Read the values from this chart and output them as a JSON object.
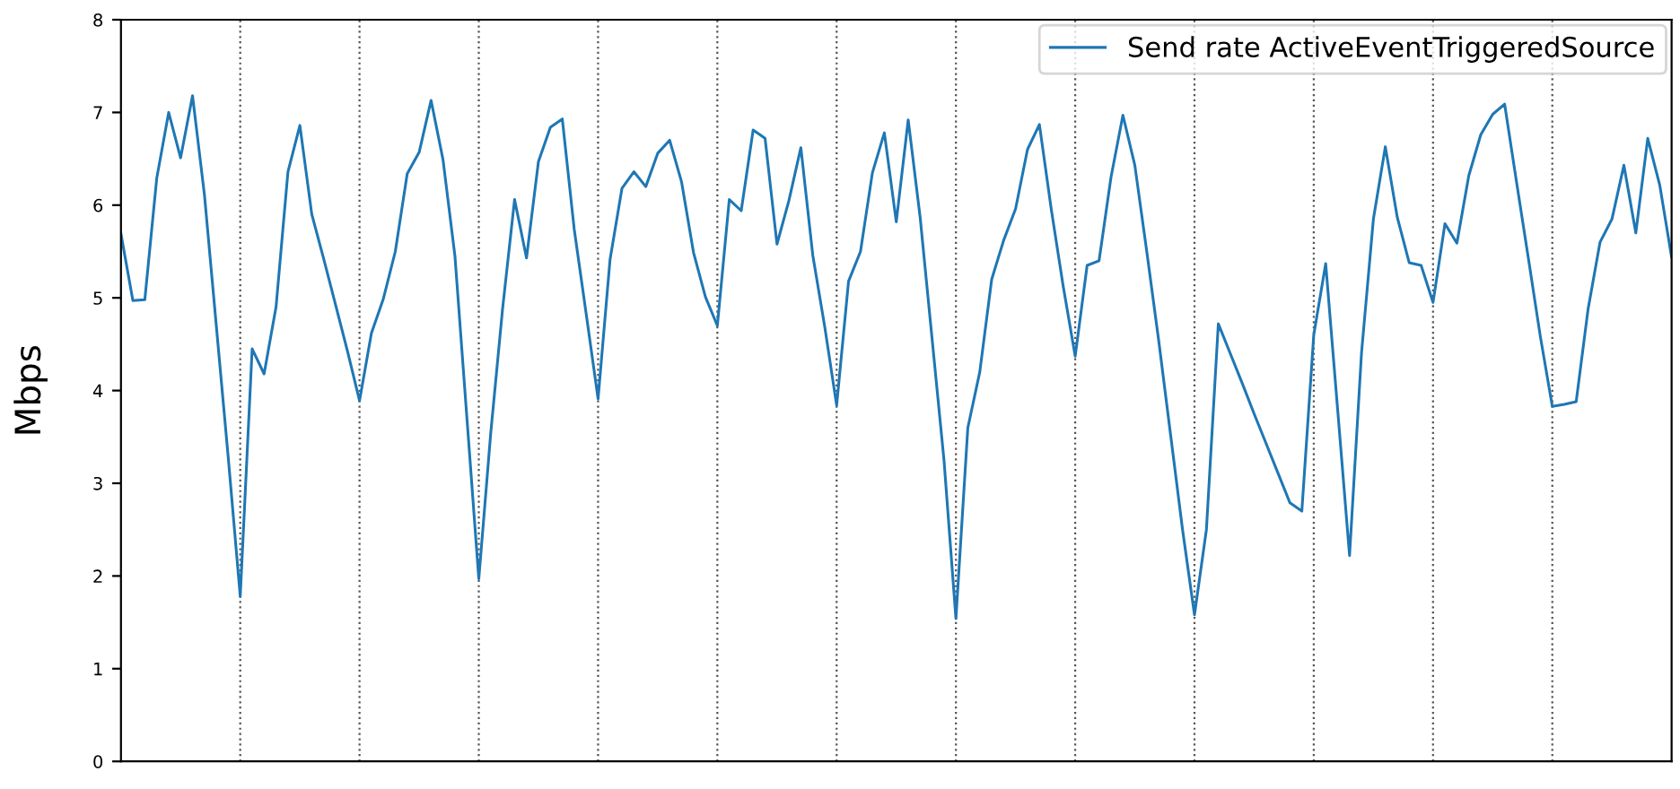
{
  "chart_data": {
    "type": "line",
    "ylabel": "Mbps",
    "ylim": [
      0,
      8
    ],
    "yticks": [
      0,
      1,
      2,
      3,
      4,
      5,
      6,
      7,
      8
    ],
    "categories": [
      null,
      null,
      null,
      null,
      null,
      null,
      null,
      null,
      null,
      null,
      null,
      null,
      null,
      null,
      null,
      null,
      null,
      null,
      null,
      null,
      null,
      null,
      null,
      null,
      null,
      null,
      null,
      null,
      null,
      null,
      null,
      null,
      null,
      null,
      null,
      null,
      null,
      null,
      null,
      null,
      null,
      null,
      null,
      null,
      null,
      null,
      null,
      null,
      null,
      null,
      null,
      null,
      null,
      null,
      null,
      null,
      null,
      null,
      null,
      null,
      null,
      null,
      null,
      null,
      null,
      null,
      null,
      null,
      null,
      null,
      null,
      null,
      null,
      null,
      null,
      null,
      null,
      null,
      null,
      null,
      null,
      null,
      null,
      null,
      null,
      null,
      null,
      null,
      null,
      null,
      null,
      null,
      null,
      null,
      null,
      null,
      null,
      null,
      null,
      null,
      null,
      null,
      null,
      null,
      null,
      null,
      null,
      null,
      null,
      null,
      null,
      null,
      null,
      null,
      null,
      null,
      null,
      null,
      null,
      null,
      null,
      null,
      null,
      null,
      null,
      null,
      null,
      null,
      null,
      null,
      null
    ],
    "tick_labels": "y",
    "grid": "x",
    "legend": "top right",
    "line_style": "solid",
    "marker": "none",
    "series": [
      {
        "name": "Send rate ActiveEventTriggeredSource",
        "color": "#1f77b4",
        "values": [
          5.69,
          4.97,
          4.98,
          6.29,
          7.0,
          6.51,
          7.18,
          6.11,
          4.69,
          3.27,
          1.78,
          4.45,
          4.18,
          4.9,
          6.36,
          6.86,
          5.9,
          5.42,
          4.92,
          4.42,
          3.89,
          4.62,
          4.99,
          5.5,
          6.34,
          6.57,
          7.13,
          6.49,
          5.45,
          3.71,
          1.97,
          3.54,
          4.89,
          6.06,
          5.43,
          6.47,
          6.84,
          6.93,
          5.74,
          4.83,
          3.91,
          5.41,
          6.18,
          6.36,
          6.2,
          6.56,
          6.7,
          6.25,
          5.49,
          5.01,
          4.7,
          6.06,
          5.94,
          6.81,
          6.72,
          5.58,
          6.05,
          6.62,
          5.46,
          4.69,
          3.84,
          5.18,
          5.5,
          6.35,
          6.78,
          5.82,
          6.92,
          5.87,
          4.56,
          3.25,
          1.54,
          3.6,
          4.2,
          5.2,
          5.62,
          5.96,
          6.6,
          6.87,
          5.95,
          5.12,
          4.37,
          5.35,
          5.4,
          6.3,
          6.97,
          6.43,
          5.5,
          4.54,
          3.52,
          2.5,
          1.58,
          2.5,
          4.72,
          4.4,
          4.08,
          3.75,
          3.43,
          3.11,
          2.79,
          2.7,
          4.6,
          5.37,
          3.8,
          2.22,
          4.4,
          5.85,
          6.63,
          5.87,
          5.38,
          5.35,
          4.95,
          5.8,
          5.59,
          6.32,
          6.76,
          6.98,
          7.09,
          6.25,
          5.42,
          4.58,
          3.83,
          3.85,
          3.88,
          4.88,
          5.6,
          5.85,
          6.43,
          5.7,
          6.72,
          6.22,
          5.44
        ]
      }
    ]
  }
}
